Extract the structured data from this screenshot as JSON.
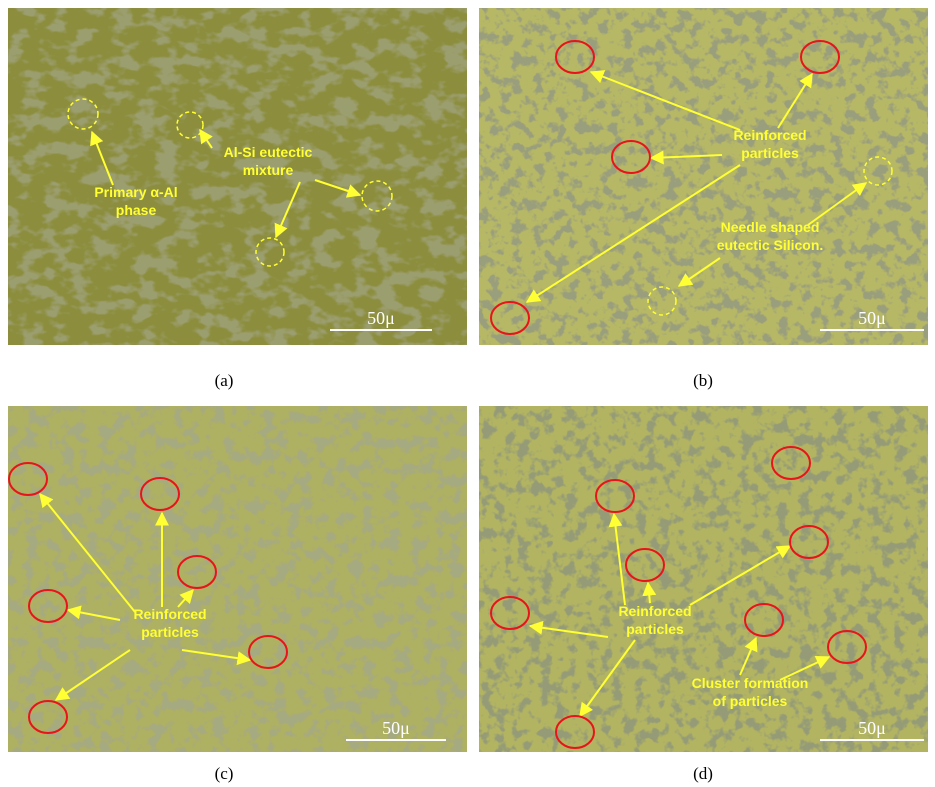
{
  "panels": [
    {
      "caption": "(a)",
      "scale_bar": "50μ",
      "labels": [
        {
          "lines": [
            "Primary α-Al",
            "phase"
          ]
        },
        {
          "lines": [
            "Al-Si eutectic",
            "mixture"
          ]
        }
      ]
    },
    {
      "caption": "(b)",
      "scale_bar": "50μ",
      "labels": [
        {
          "lines": [
            "Reinforced",
            "particles"
          ]
        },
        {
          "lines": [
            "Needle shaped",
            "eutectic Silicon."
          ]
        }
      ]
    },
    {
      "caption": "(c)",
      "scale_bar": "50μ",
      "labels": [
        {
          "lines": [
            "Reinforced",
            "particles"
          ]
        }
      ]
    },
    {
      "caption": "(d)",
      "scale_bar": "50μ",
      "labels": [
        {
          "lines": [
            "Reinforced",
            "particles"
          ]
        },
        {
          "lines": [
            "Cluster formation",
            "of particles"
          ]
        }
      ]
    }
  ]
}
